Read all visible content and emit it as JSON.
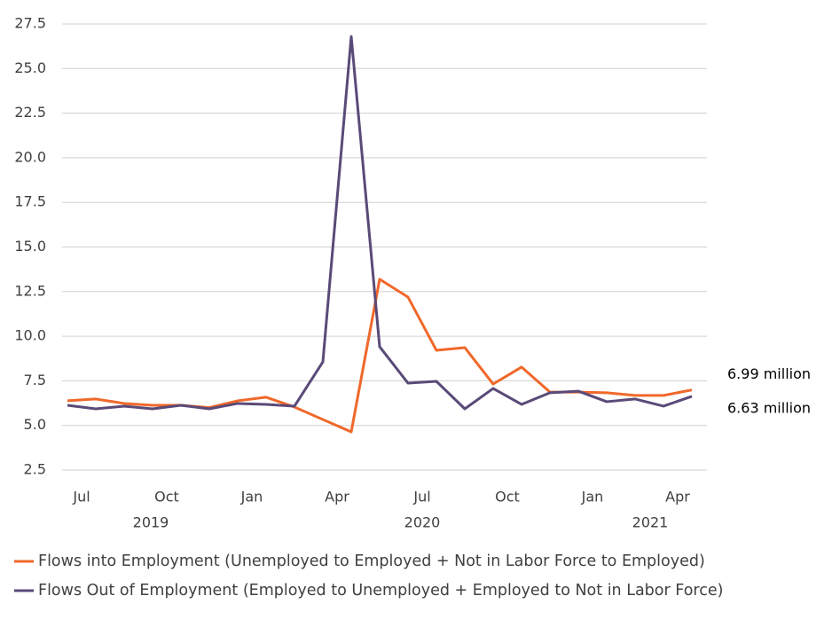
{
  "chart_data": {
    "type": "line",
    "categories": [
      null,
      "Jul",
      null,
      null,
      "Oct",
      null,
      null,
      "Jan",
      null,
      null,
      "Apr",
      null,
      null,
      "Jul",
      null,
      null,
      "Oct",
      null,
      null,
      "Jan",
      null,
      null,
      "Apr"
    ],
    "year_labels": [
      "2019",
      "2020",
      "2021"
    ],
    "series": [
      {
        "name": "Flows into Employment (Unemployed to Employed + Not in Labor Force to Employed)",
        "color": "#f0682a",
        "values": [
          6.38,
          6.48,
          6.23,
          6.13,
          6.13,
          6.0,
          6.38,
          6.58,
          6.03,
          5.33,
          4.64,
          13.19,
          12.19,
          9.21,
          9.36,
          7.32,
          8.27,
          6.87,
          6.87,
          6.83,
          6.68,
          6.68,
          6.99
        ]
      },
      {
        "name": "Flows Out of Employment (Employed to Unemployed + Employed to Not in Labor Force)",
        "color": "#5a4a78",
        "values": [
          6.13,
          5.93,
          6.08,
          5.93,
          6.13,
          5.93,
          6.23,
          6.18,
          6.08,
          8.56,
          26.8,
          9.41,
          7.37,
          7.47,
          5.93,
          7.07,
          6.18,
          6.83,
          6.92,
          6.33,
          6.48,
          6.08,
          6.63
        ]
      }
    ],
    "annotations": [
      "6.99 million",
      "6.63 million"
    ],
    "ylim": [
      2.5,
      27.5
    ],
    "yticks": [
      2.5,
      {
        "value": 5,
        "label": "5.0"
      },
      7.5,
      {
        "value": 10,
        "label": "10.0"
      },
      12.5,
      {
        "value": 15,
        "label": "15.0"
      },
      17.5,
      {
        "value": 20,
        "label": "20.0"
      },
      22.5,
      {
        "value": 25,
        "label": "25.0"
      },
      27.5
    ],
    "grid": true,
    "legend": "bottom-left"
  }
}
